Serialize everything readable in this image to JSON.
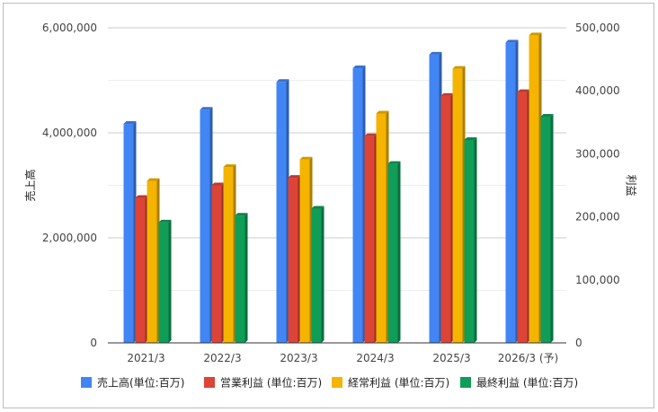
{
  "chart_data": {
    "type": "bar",
    "categories": [
      "2021/3",
      "2022/3",
      "2023/3",
      "2024/3",
      "2025/3",
      "2026/3 (予)"
    ],
    "y_left": {
      "label": "売上高",
      "range": [
        0,
        6000000
      ],
      "ticks": [
        "0",
        "2,000,000",
        "4,000,000",
        "6,000,000"
      ]
    },
    "y_right": {
      "label": "利益",
      "range": [
        0,
        500000
      ],
      "ticks": [
        "0",
        "100,000",
        "200,000",
        "300,000",
        "400,000",
        "500,000"
      ]
    },
    "grid": true,
    "legend_position": "bottom",
    "series": [
      {
        "name": "売上高(単位:百万)",
        "axis": "left",
        "color": "#4285f4",
        "values": [
          4170000,
          4440000,
          4970000,
          5230000,
          5490000,
          5720000
        ]
      },
      {
        "name": "営業利益 (単位:百万)",
        "axis": "right",
        "color": "#db4437",
        "values": [
          230000,
          250000,
          262000,
          328000,
          392000,
          398000
        ]
      },
      {
        "name": "経常利益 (単位:百万)",
        "axis": "right",
        "color": "#f4b400",
        "values": [
          257000,
          279000,
          291000,
          364000,
          435000,
          488000
        ]
      },
      {
        "name": "最終利益 (単位:百万)",
        "axis": "right",
        "color": "#0f9d58",
        "values": [
          191000,
          202000,
          213000,
          284000,
          322000,
          359000
        ]
      }
    ]
  }
}
